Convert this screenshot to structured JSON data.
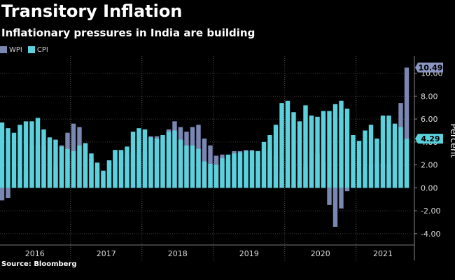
{
  "header": {
    "title": "Transitory Inflation",
    "subtitle": "Inflationary pressures in India are building"
  },
  "footer": {
    "source": "Source: Bloomberg"
  },
  "colors": {
    "background": "#000000",
    "wpi": "#7a87b3",
    "cpi": "#5ad1dc",
    "grid": "#3a3a3a",
    "label_box": "#8c96c2"
  },
  "chart_data": {
    "type": "bar",
    "title": "Transitory Inflation",
    "subtitle": "Inflationary pressures in India are building",
    "xlabel": "",
    "ylabel": "Percent",
    "ylim": [
      -4.5,
      11.5
    ],
    "yticks": [
      -4.0,
      -2.0,
      0.0,
      2.0,
      4.0,
      6.0,
      8.0,
      10.0
    ],
    "ytick_labels": [
      "-4.00",
      "-2.00",
      "0.00",
      "2.00",
      "4.00",
      "6.00",
      "8.00",
      "10.00"
    ],
    "year_labels": [
      "2016",
      "2017",
      "2018",
      "2019",
      "2020",
      "2021"
    ],
    "grid": true,
    "legend": "top-left",
    "series": [
      {
        "name": "WPI",
        "values": [
          -1.1,
          -0.9,
          0.3,
          0.8,
          1.6,
          3.7,
          3.7,
          3.6,
          3.2,
          1.9,
          3.7,
          4.8,
          5.6,
          5.3,
          3.8,
          2.6,
          1.9,
          1.3,
          2.3,
          3.3,
          3.2,
          2.9,
          3.1,
          3.1,
          3.2,
          4.5,
          4.5,
          4.4,
          5.1,
          5.8,
          5.3,
          4.9,
          5.3,
          5.5,
          4.3,
          3.7,
          2.8,
          2.9,
          2.4,
          3.2,
          3.2,
          3.3,
          3.3,
          3.2,
          3.2,
          3.4,
          2.8,
          1.4,
          0.3,
          0.2,
          0.6,
          1.9,
          3.2,
          3.0,
          2.3,
          -1.5,
          -3.4,
          -1.8,
          -0.3,
          0.4,
          1.3,
          1.5,
          2.0,
          2.3,
          2.1,
          2.0,
          4.2,
          7.4,
          10.49
        ],
        "labels": [
          "Jan 2016",
          "Feb 2016",
          "Mar 2016",
          "Apr 2016",
          "May 2016",
          "Jun 2016",
          "Jul 2016",
          "Aug 2016",
          "Sep 2016",
          "Oct 2016",
          "Nov 2016",
          "Dec 2016",
          "Jan 2017",
          "Feb 2017",
          "Mar 2017",
          "Apr 2017",
          "May 2017",
          "Jun 2017",
          "Jul 2017",
          "Aug 2017",
          "Sep 2017",
          "Oct 2017",
          "Nov 2017",
          "Dec 2017",
          "Jan 2018",
          "Feb 2018",
          "Mar 2018",
          "Apr 2018",
          "May 2018",
          "Jun 2018",
          "Jul 2018",
          "Aug 2018",
          "Sep 2018",
          "Oct 2018",
          "Nov 2018",
          "Dec 2018",
          "Jan 2019",
          "Feb 2019",
          "Mar 2019",
          "Apr 2019",
          "May 2019",
          "Jun 2019",
          "Jul 2019",
          "Aug 2019",
          "Sep 2019",
          "Oct 2019",
          "Nov 2019",
          "Dec 2019",
          "Jan 2020",
          "Feb 2020",
          "Mar 2020",
          "Apr 2020",
          "May 2020",
          "Jun 2020",
          "Jul 2020",
          "Aug 2020",
          "Sep 2020",
          "Oct 2020",
          "Nov 2020",
          "Dec 2020",
          "Jan 2021",
          "Feb 2021",
          "Mar 2021",
          "Apr 2021",
          "May 2021",
          "Jun 2021",
          "Jul 2021",
          "Aug 2021",
          "Sep 2021"
        ],
        "last_value_label": "10.49"
      },
      {
        "name": "CPI",
        "values": [
          5.7,
          5.2,
          4.8,
          5.5,
          5.8,
          5.8,
          6.1,
          5.1,
          4.4,
          4.2,
          3.6,
          3.4,
          3.2,
          3.7,
          3.9,
          3.0,
          2.2,
          1.5,
          2.4,
          3.3,
          3.3,
          3.6,
          4.9,
          5.2,
          5.1,
          4.4,
          4.3,
          4.6,
          4.9,
          5.0,
          4.2,
          3.7,
          3.7,
          3.4,
          2.3,
          2.1,
          2.0,
          2.6,
          2.9,
          3.0,
          3.1,
          3.2,
          3.2,
          3.2,
          4.0,
          4.6,
          5.5,
          7.4,
          7.6,
          6.6,
          5.8,
          7.2,
          6.3,
          6.2,
          6.7,
          6.7,
          7.3,
          7.6,
          6.9,
          4.6,
          4.1,
          5.0,
          5.5,
          4.3,
          6.3,
          6.3,
          5.6,
          5.3,
          4.29
        ],
        "last_value_label": "4.29"
      }
    ]
  }
}
